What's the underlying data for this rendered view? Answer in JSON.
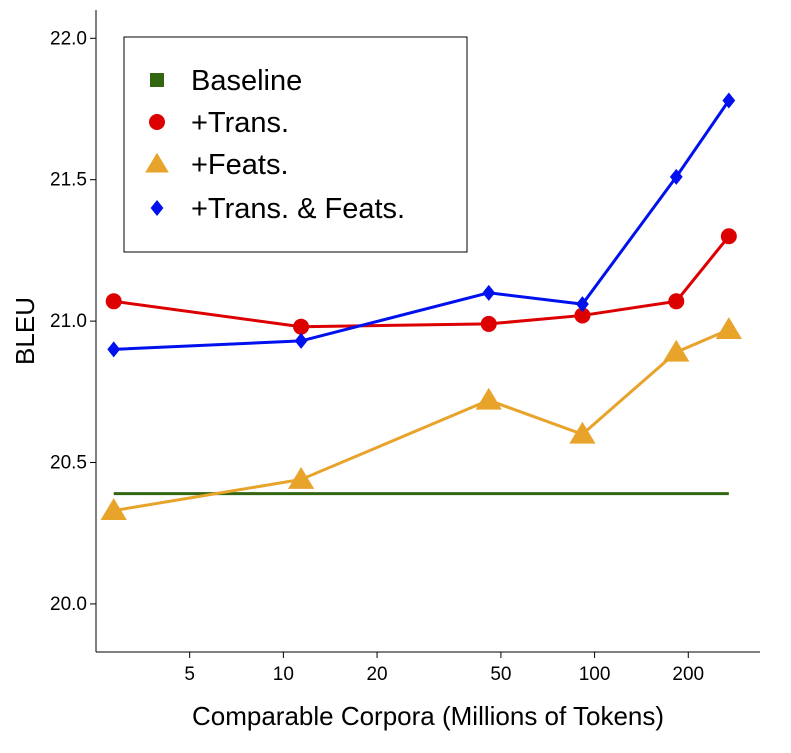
{
  "chart_data": {
    "type": "line",
    "xlabel": "Comparable Corpora (Millions of Tokens)",
    "ylabel": "BLEU",
    "x_scale": "log",
    "xlim": [
      2.5,
      340
    ],
    "ylim": [
      19.83,
      22.1
    ],
    "x_ticks": [
      5,
      10,
      20,
      50,
      100,
      200
    ],
    "y_ticks": [
      20.0,
      20.5,
      21.0,
      21.5,
      22.0
    ],
    "y_tick_labels": [
      "20.0",
      "20.5",
      "21.0",
      "21.5",
      "22.0"
    ],
    "grid": false,
    "legend_position": "top-left",
    "series": [
      {
        "name": "Baseline",
        "color": "#336611",
        "marker": "square",
        "marker_on_line": false,
        "x": [
          2.85,
          270
        ],
        "y": [
          20.39,
          20.39
        ]
      },
      {
        "name": "+Trans.",
        "color": "#dd0000",
        "marker": "circle",
        "x": [
          2.85,
          11.4,
          45.7,
          91.4,
          183,
          270
        ],
        "y": [
          21.07,
          20.98,
          20.99,
          21.02,
          21.07,
          21.3
        ]
      },
      {
        "name": "+Feats.",
        "color": "#e8a32b",
        "marker": "triangle",
        "x": [
          2.85,
          11.4,
          45.7,
          91.4,
          183,
          270
        ],
        "y": [
          20.33,
          20.44,
          20.72,
          20.6,
          20.89,
          20.97
        ]
      },
      {
        "name": "+Trans. & Feats.",
        "color": "#0011ee",
        "marker": "diamond",
        "x": [
          2.85,
          11.4,
          45.7,
          91.4,
          183,
          270
        ],
        "y": [
          20.9,
          20.93,
          21.1,
          21.06,
          21.51,
          21.78
        ]
      }
    ]
  }
}
